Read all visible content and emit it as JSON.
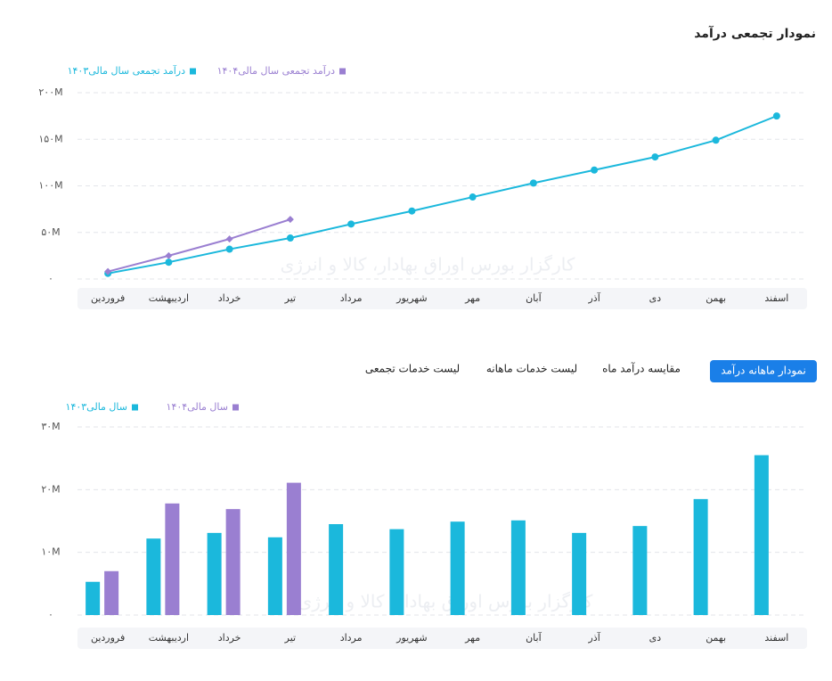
{
  "title": "نمودار تجمعی درآمد",
  "watermark": "کارگزار بورس اوراق بهادار، کالا و انرژی",
  "tabs": [
    "نمودار ماهانه درآمد",
    "مقایسه درآمد ماه",
    "لیست خدمات ماهانه",
    "لیست خدمات تجمعی"
  ],
  "chart_data": [
    {
      "type": "line",
      "categories": [
        "فروردین",
        "اردیبهشت",
        "خرداد",
        "تیر",
        "مرداد",
        "شهریور",
        "مهر",
        "آبان",
        "آذر",
        "دی",
        "بهمن",
        "اسفند"
      ],
      "series": [
        {
          "name": "درآمد تجمعی سال مالی۱۴۰۳",
          "color": "#1bb8dc",
          "marker": "circle",
          "values": [
            6,
            18,
            32,
            44,
            59,
            73,
            88,
            103,
            117,
            131,
            149,
            175
          ]
        },
        {
          "name": "درآمد تجمعی سال مالی۱۴۰۴",
          "color": "#9a7fd1",
          "marker": "diamond",
          "values": [
            8,
            25,
            43,
            64,
            null,
            null,
            null,
            null,
            null,
            null,
            null,
            null
          ]
        }
      ],
      "ylim": [
        0,
        200
      ],
      "yticks": [
        {
          "value": 0,
          "label": "۰"
        },
        {
          "value": 50,
          "label": "۵۰M"
        },
        {
          "value": 100,
          "label": "۱۰۰M"
        },
        {
          "value": 150,
          "label": "۱۵۰M"
        },
        {
          "value": 200,
          "label": "۲۰۰M"
        }
      ],
      "grid": true
    },
    {
      "type": "bar",
      "categories": [
        "فروردین",
        "اردیبهشت",
        "خرداد",
        "تیر",
        "مرداد",
        "شهریور",
        "مهر",
        "آبان",
        "آذر",
        "دی",
        "بهمن",
        "اسفند"
      ],
      "series": [
        {
          "name": "سال مالی۱۴۰۳",
          "color": "#1bb8dc",
          "values": [
            5.3,
            12.2,
            13.1,
            12.4,
            14.5,
            13.7,
            14.9,
            15.1,
            13.1,
            14.2,
            18.5,
            25.5
          ]
        },
        {
          "name": "سال مالی۱۴۰۴",
          "color": "#9a7fd1",
          "values": [
            7.0,
            17.8,
            16.9,
            21.1,
            null,
            null,
            null,
            null,
            null,
            null,
            null,
            null
          ]
        }
      ],
      "ylim": [
        0,
        30
      ],
      "yticks": [
        {
          "value": 0,
          "label": "۰"
        },
        {
          "value": 10,
          "label": "۱۰M"
        },
        {
          "value": 20,
          "label": "۲۰M"
        },
        {
          "value": 30,
          "label": "۳۰M"
        }
      ],
      "grid": true
    }
  ]
}
